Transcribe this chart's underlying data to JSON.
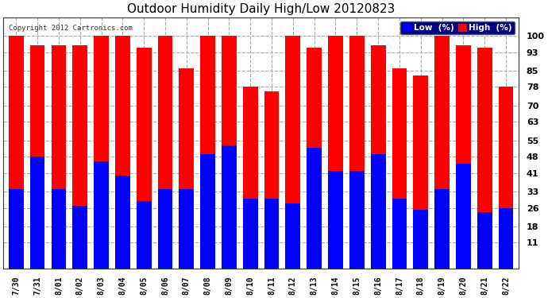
{
  "title": "Outdoor Humidity Daily High/Low 20120823",
  "copyright": "Copyright 2012 Cartronics.com",
  "dates": [
    "7/30",
    "7/31",
    "8/01",
    "8/02",
    "8/03",
    "8/04",
    "8/05",
    "8/06",
    "8/07",
    "8/08",
    "8/09",
    "8/10",
    "8/11",
    "8/12",
    "8/13",
    "8/14",
    "8/15",
    "8/16",
    "8/17",
    "8/18",
    "8/19",
    "8/20",
    "8/21",
    "8/22"
  ],
  "high": [
    100,
    96,
    96,
    96,
    100,
    100,
    95,
    100,
    86,
    100,
    100,
    78,
    76,
    100,
    95,
    100,
    100,
    96,
    86,
    83,
    100,
    96,
    95,
    78
  ],
  "low": [
    34,
    48,
    34,
    27,
    46,
    40,
    29,
    34,
    34,
    49,
    53,
    30,
    30,
    28,
    52,
    42,
    42,
    49,
    30,
    25,
    34,
    45,
    24,
    26
  ],
  "bar_width": 0.7,
  "high_color": "#ff0000",
  "low_color": "#0000ff",
  "bg_color": "#ffffff",
  "grid_color": "#aaaaaa",
  "ylim": [
    0,
    108
  ],
  "yticks": [
    11,
    18,
    26,
    33,
    41,
    48,
    55,
    63,
    70,
    78,
    85,
    93,
    100
  ],
  "title_fontsize": 11,
  "tick_fontsize": 7,
  "legend_low_label": "Low  (%)",
  "legend_high_label": "High  (%)",
  "legend_bg": "#000080",
  "legend_text_color": "#ffffff"
}
